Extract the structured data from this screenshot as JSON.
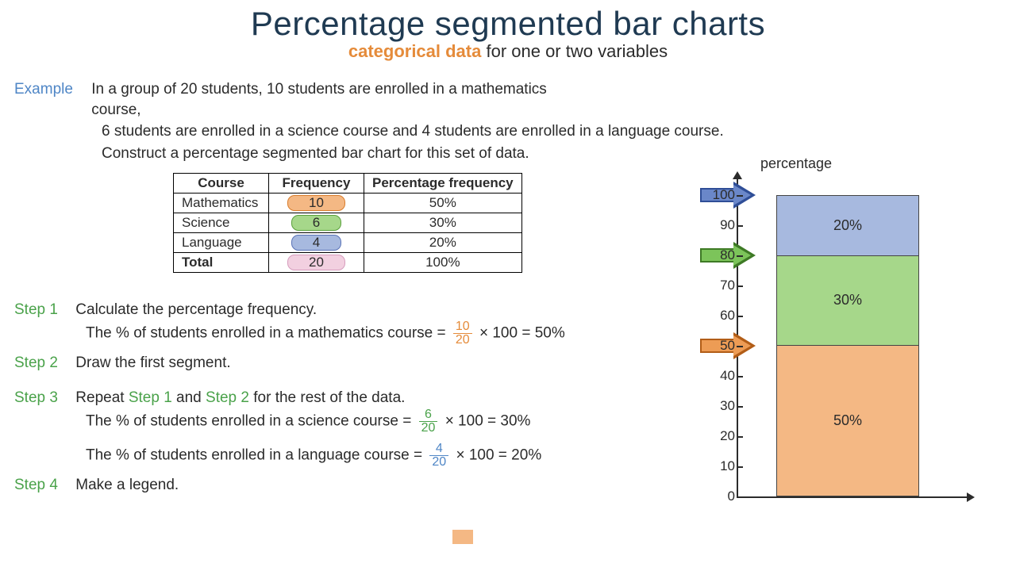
{
  "title": "Percentage segmented bar charts",
  "subtitle_accent": "categorical data",
  "subtitle_rest": "  for one or two variables",
  "example_label": "Example",
  "question_l1": "In a group of 20 students, 10 students are enrolled in a mathematics course,",
  "question_l2": "6 students are enrolled in a science course and 4 students are enrolled in a language course.",
  "question_l3": "Construct a percentage segmented bar chart for this set of data.",
  "table": {
    "headers": [
      "Course",
      "Frequency",
      "Percentage frequency"
    ],
    "rows": [
      {
        "course": "Mathematics",
        "freq": "10",
        "pct": "50%",
        "pill": "pill-orange"
      },
      {
        "course": "Science",
        "freq": "6",
        "pct": "30%",
        "pill": "pill-green"
      },
      {
        "course": "Language",
        "freq": "4",
        "pct": "20%",
        "pill": "pill-blue"
      }
    ],
    "total_label": "Total",
    "total_freq": "20",
    "total_pct": "100%"
  },
  "steps": {
    "s1_label": "Step 1",
    "s1_text": "Calculate the percentage frequency.",
    "s1_calc_pre": "The % of students enrolled in a mathematics course = ",
    "s1_num": "10",
    "s1_den": "20",
    "s1_calc_post": " × 100 = 50%",
    "s2_label": "Step 2",
    "s2_text": "Draw the first segment.",
    "s3_label": "Step 3",
    "s3_pre": "Repeat  ",
    "s3_a": "Step 1",
    "s3_mid": "  and  ",
    "s3_b": "Step 2",
    "s3_post": "  for the rest of the data.",
    "s3_calc1_pre": "The % of students enrolled in a science course = ",
    "s3_n1": "6",
    "s3_d1": "20",
    "s3_calc1_post": " × 100 = 30%",
    "s3_calc2_pre": "The % of students enrolled in a language course = ",
    "s3_n2": "4",
    "s3_d2": "20",
    "s3_calc2_post": " × 100 = 20%",
    "s4_label": "Step 4",
    "s4_text": "Make a legend."
  },
  "chart": {
    "axis_title": "percentage",
    "ticks": [
      "100",
      "90",
      "80",
      "70",
      "60",
      "50",
      "40",
      "30",
      "20",
      "10",
      "0"
    ],
    "seg_top_label": "20%",
    "seg_mid_label": "30%",
    "seg_bot_label": "50%",
    "colors": {
      "blue": "#a7b9df",
      "green": "#a6d78a",
      "orange": "#f4b884"
    },
    "arrow_positions_pct": {
      "blue": 100,
      "green": 80,
      "orange": 50
    }
  }
}
